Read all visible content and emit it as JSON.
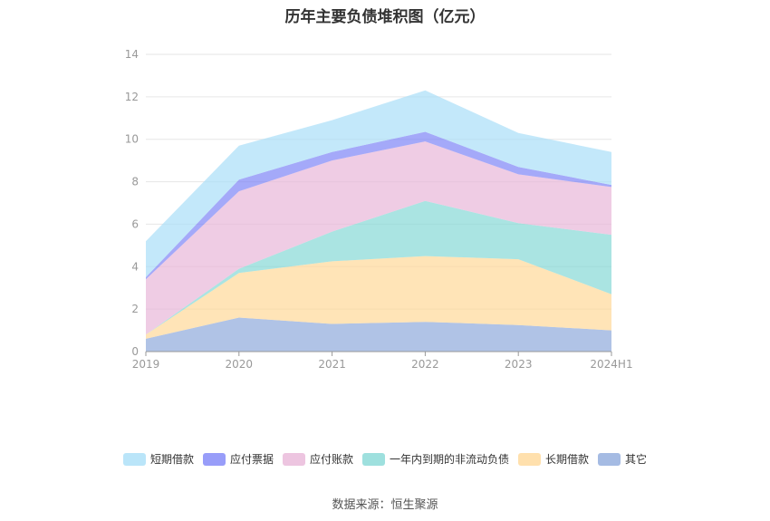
{
  "title": "历年主要负债堆积图（亿元）",
  "source": "数据来源：恒生聚源",
  "chart_data": {
    "type": "area",
    "stacked": true,
    "title": "历年主要负债堆积图（亿元）",
    "categories": [
      "2019",
      "2020",
      "2021",
      "2022",
      "2023",
      "2024H1"
    ],
    "ylim": [
      0,
      14
    ],
    "yticks": [
      0,
      2,
      4,
      6,
      8,
      10,
      12,
      14
    ],
    "grid": true,
    "legend_position": "bottom",
    "series": [
      {
        "name": "其它",
        "color": "#8faadc",
        "values": [
          0.6,
          1.6,
          1.3,
          1.4,
          1.25,
          1.0
        ]
      },
      {
        "name": "长期借款",
        "color": "#ffd899",
        "values": [
          0.2,
          2.1,
          2.95,
          3.1,
          3.1,
          1.7
        ]
      },
      {
        "name": "一年内到期的非流动负债",
        "color": "#86d8d6",
        "values": [
          0.0,
          0.2,
          1.4,
          2.6,
          1.7,
          2.8
        ]
      },
      {
        "name": "应付账款",
        "color": "#e8b6d8",
        "values": [
          2.6,
          3.65,
          3.35,
          2.8,
          2.3,
          2.25
        ]
      },
      {
        "name": "应付票据",
        "color": "#7e84f7",
        "values": [
          0.1,
          0.55,
          0.4,
          0.45,
          0.35,
          0.1
        ]
      },
      {
        "name": "短期借款",
        "color": "#a9def8",
        "values": [
          1.7,
          1.6,
          1.5,
          1.95,
          1.6,
          1.55
        ]
      }
    ],
    "legend_order": [
      "短期借款",
      "应付票据",
      "应付账款",
      "一年内到期的非流动负债",
      "长期借款",
      "其它"
    ]
  }
}
